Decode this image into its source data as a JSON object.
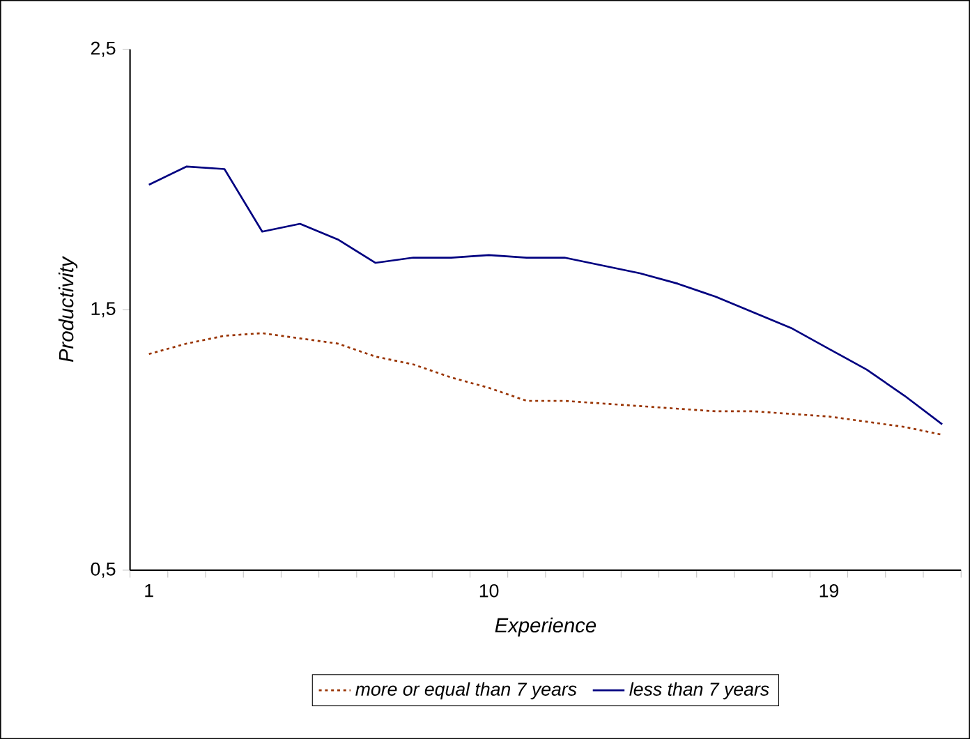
{
  "chart_data": {
    "type": "line",
    "xlabel": "Experience",
    "ylabel": "Productivity",
    "categories": [
      "1",
      null,
      null,
      null,
      null,
      null,
      null,
      null,
      null,
      "10",
      null,
      null,
      null,
      null,
      null,
      null,
      null,
      null,
      "19",
      null,
      null,
      null
    ],
    "ylim": [
      0.5,
      2.5
    ],
    "yticks": [
      {
        "value": 0.5,
        "label": "0,5"
      },
      {
        "value": 1.5,
        "label": "1,5"
      },
      {
        "value": 2.5,
        "label": "2,5"
      }
    ],
    "grid": false,
    "legend": "bottom",
    "marker": "none",
    "series": [
      {
        "name": "more or equal than 7 years",
        "color": "#993300",
        "line_style": "dotted",
        "values": [
          1.33,
          1.37,
          1.4,
          1.41,
          1.39,
          1.37,
          1.32,
          1.29,
          1.24,
          1.2,
          1.15,
          1.15,
          1.14,
          1.13,
          1.12,
          1.11,
          1.11,
          1.1,
          1.09,
          1.07,
          1.05,
          1.02
        ]
      },
      {
        "name": "less than 7 years",
        "color": "#000080",
        "line_style": "solid",
        "values": [
          1.98,
          2.05,
          2.04,
          1.8,
          1.83,
          1.77,
          1.68,
          1.7,
          1.7,
          1.71,
          1.7,
          1.7,
          1.67,
          1.64,
          1.6,
          1.55,
          1.49,
          1.43,
          1.35,
          1.27,
          1.17,
          1.06
        ]
      }
    ]
  }
}
